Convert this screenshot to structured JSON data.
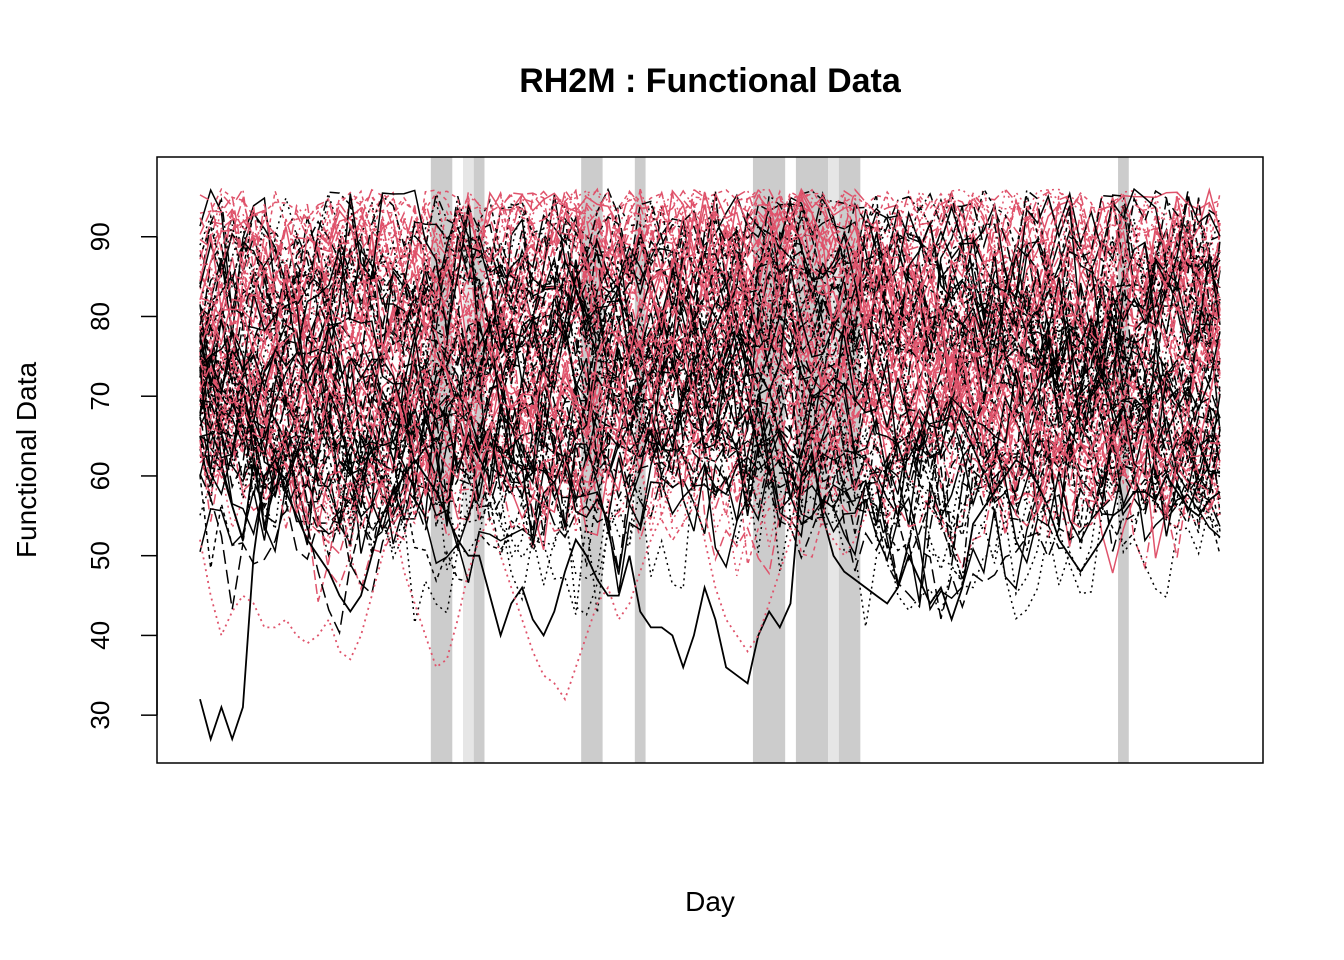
{
  "chart_data": {
    "type": "line",
    "title": "RH2M : Functional Data",
    "xlabel": "Day",
    "ylabel": "Functional Data",
    "x_ticks_shown": false,
    "y_ticks": [
      30,
      40,
      50,
      60,
      70,
      80,
      90
    ],
    "ylim": [
      24,
      100
    ],
    "xlim": [
      -3,
      100
    ],
    "n_days": 96,
    "grid": false,
    "legend": "none",
    "colors": {
      "black_group": "#000000",
      "red_group": "#DF536B",
      "shade_dark": "#CCCCCC",
      "shade_light": "#E6E6E6"
    },
    "series_groups": [
      {
        "color": "#000000",
        "count": 55,
        "mean_level": 72
      },
      {
        "color": "#DF536B",
        "count": 55,
        "mean_level": 77
      }
    ],
    "highlighted_series": [
      {
        "color": "#000000",
        "style": "solid",
        "values": [
          32,
          27,
          31,
          27,
          31,
          50,
          60,
          62,
          58,
          55,
          52,
          50,
          48,
          45,
          43,
          45,
          50,
          55,
          58,
          60,
          62,
          60,
          58,
          55,
          52,
          50,
          50,
          45,
          40,
          44,
          46,
          42,
          40,
          43,
          48,
          52,
          50,
          47,
          45,
          45,
          50,
          43,
          41,
          41,
          40,
          36,
          40,
          46,
          42,
          36,
          35,
          34,
          40,
          43,
          41,
          44,
          60,
          63,
          55,
          50,
          48,
          47,
          46,
          45,
          44,
          46,
          50,
          47,
          44,
          46,
          42,
          46,
          54,
          56,
          58,
          60,
          62,
          61,
          59,
          56,
          52,
          50,
          48,
          50,
          52,
          55,
          56,
          58,
          58,
          57,
          60,
          58,
          56,
          55,
          57,
          58
        ]
      },
      {
        "color": "#DF536B",
        "style": "dotted",
        "values": [
          52,
          45,
          40,
          43,
          45,
          44,
          41,
          41,
          42,
          40,
          39,
          40,
          42,
          38,
          37,
          40,
          45,
          50,
          55,
          48,
          44,
          40,
          36,
          37,
          42,
          48,
          52,
          55,
          50,
          46,
          42,
          38,
          35,
          34,
          32,
          36,
          40,
          44,
          46,
          42,
          44,
          48,
          52,
          55,
          60,
          63,
          58,
          52,
          46,
          42,
          40,
          38,
          40,
          44,
          48,
          52,
          55,
          56,
          54,
          52,
          50,
          52,
          55,
          58,
          60,
          62,
          60,
          58,
          56,
          54,
          52,
          55,
          58,
          60,
          62,
          64,
          62,
          60,
          58,
          56,
          55,
          54,
          56,
          58,
          60,
          62,
          63,
          62,
          60,
          58,
          57,
          56,
          55,
          54,
          56,
          55
        ]
      }
    ],
    "shaded_day_ranges": [
      {
        "from": 22.5,
        "to": 24.5,
        "shade": "dark"
      },
      {
        "from": 25.5,
        "to": 26.5,
        "shade": "light"
      },
      {
        "from": 26.5,
        "to": 27.5,
        "shade": "dark"
      },
      {
        "from": 36.5,
        "to": 38.5,
        "shade": "dark"
      },
      {
        "from": 41.5,
        "to": 42.5,
        "shade": "dark"
      },
      {
        "from": 52.5,
        "to": 55.5,
        "shade": "dark"
      },
      {
        "from": 56.5,
        "to": 59.5,
        "shade": "dark"
      },
      {
        "from": 59.5,
        "to": 60.5,
        "shade": "light"
      },
      {
        "from": 60.5,
        "to": 62.5,
        "shade": "dark"
      },
      {
        "from": 86.5,
        "to": 87.5,
        "shade": "dark"
      }
    ]
  }
}
